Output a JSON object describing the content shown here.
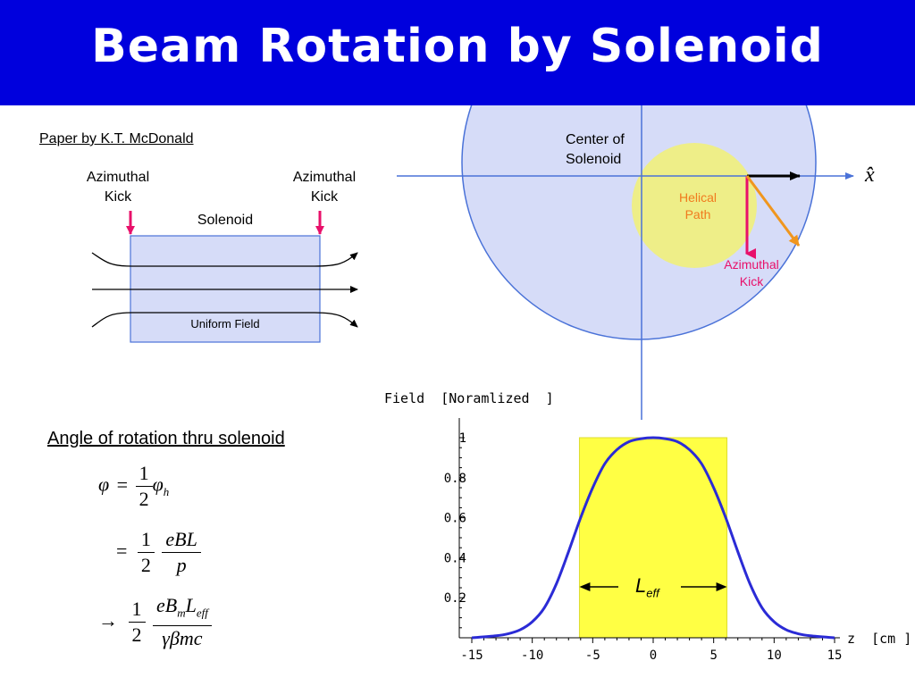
{
  "title": "Beam Rotation by Solenoid",
  "solenoid_diagram": {
    "paper_ref": "Paper by K.T. McDonald",
    "left_kick_line1": "Azimuthal",
    "left_kick_line2": "Kick",
    "right_kick_line1": "Azimuthal",
    "right_kick_line2": "Kick",
    "solenoid_label": "Solenoid",
    "field_label": "Uniform Field"
  },
  "cross_section": {
    "center_line1": "Center of",
    "center_line2": "Solenoid",
    "helical_line1": "Helical",
    "helical_line2": "Path",
    "kick_line1": "Azimuthal",
    "kick_line2": "Kick",
    "x_axis_symbol": "x̂"
  },
  "rotation": {
    "heading": "Angle of rotation thru solenoid",
    "phi": "φ",
    "phi_h": "φ",
    "sub_h": "h",
    "eq": "=",
    "arrow": "→",
    "one": "1",
    "two": "2",
    "eBL": "eBL",
    "p": "p",
    "eB": "eB",
    "sub_m": "m",
    "L": "L",
    "sub_eff": "eff",
    "gamma_beta_mc": "γβmc"
  },
  "colors": {
    "title_bg": "#0000dd",
    "circle_fill": "#d6dcf8",
    "helical_fill": "#eeee88",
    "kick_pink": "#e8106a",
    "orange": "#f0961e",
    "leff_fill": "#ffff44",
    "curve": "#2b2bd6"
  },
  "chart_data": {
    "type": "line",
    "title": "Field  [Noramlized  ]",
    "xlabel": "z  [cm ]",
    "ylabel": "",
    "xlim": [
      -15,
      15
    ],
    "ylim": [
      0,
      1
    ],
    "x_ticks": [
      "-15",
      "-10",
      "-5",
      "0",
      "5",
      "10",
      "15"
    ],
    "y_ticks": [
      "0.2",
      "0.4",
      "0.6",
      "0.8",
      "1"
    ],
    "leff_label": "L",
    "leff_sub": "eff",
    "leff_region": [
      -6.1,
      6.1
    ],
    "series": [
      {
        "x": [
          -15,
          -13,
          -12,
          -11,
          -10,
          -9,
          -8,
          -7,
          -6,
          -5,
          -4,
          -3,
          -2,
          -1,
          0,
          1,
          2,
          3,
          4,
          5,
          6,
          7,
          8,
          9,
          10,
          11,
          12,
          13,
          15
        ],
        "values": [
          0.0,
          0.01,
          0.02,
          0.04,
          0.08,
          0.15,
          0.27,
          0.43,
          0.6,
          0.75,
          0.87,
          0.94,
          0.98,
          0.995,
          1.0,
          0.995,
          0.98,
          0.94,
          0.87,
          0.75,
          0.6,
          0.43,
          0.27,
          0.15,
          0.08,
          0.04,
          0.02,
          0.01,
          0.0
        ]
      }
    ]
  }
}
